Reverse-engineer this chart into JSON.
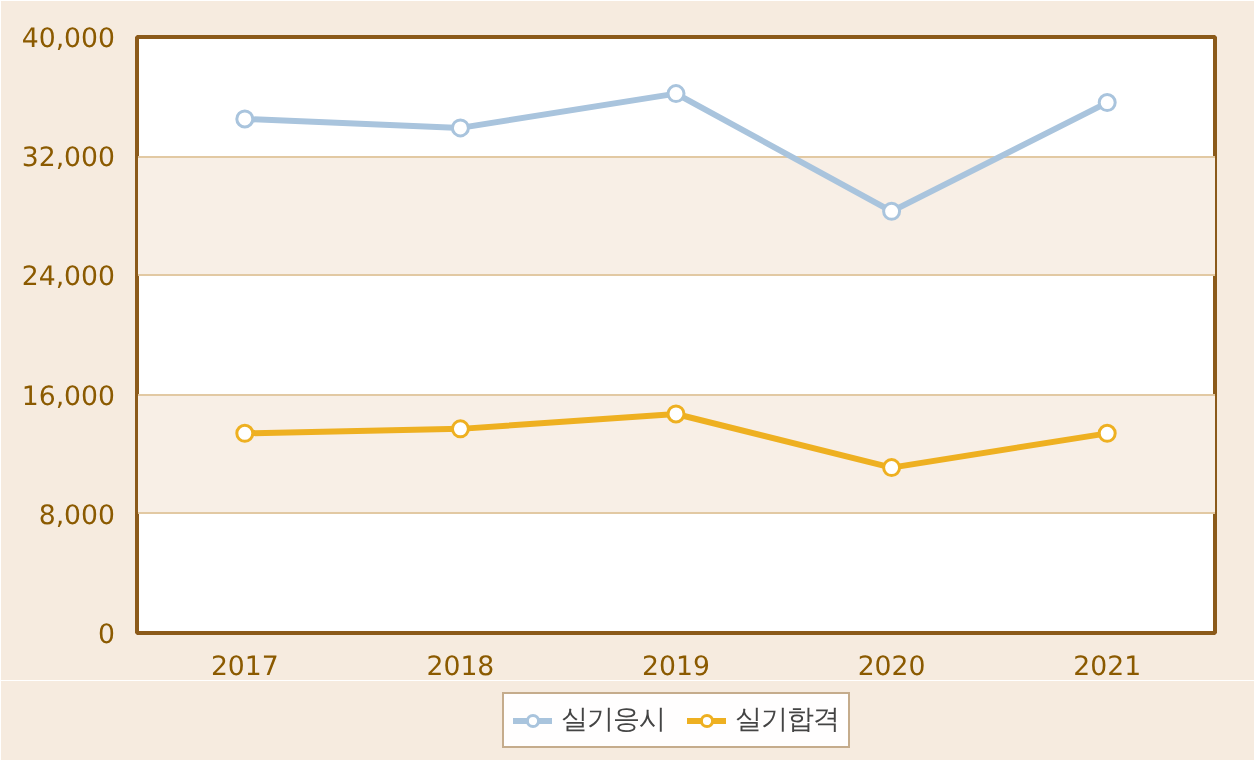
{
  "chart_data": {
    "type": "line",
    "categories": [
      "2017",
      "2018",
      "2019",
      "2020",
      "2021"
    ],
    "series": [
      {
        "name": "실기응시",
        "color": "#a9c4dd",
        "values": [
          34500,
          33900,
          36200,
          28300,
          35600
        ]
      },
      {
        "name": "실기합격",
        "color": "#eeb021",
        "values": [
          13400,
          13700,
          14700,
          11100,
          13400
        ]
      }
    ],
    "ylim": [
      0,
      40000
    ],
    "yticks": [
      {
        "value": 0,
        "label": "0"
      },
      {
        "value": 8000,
        "label": "8,000"
      },
      {
        "value": 16000,
        "label": "16,000"
      },
      {
        "value": 24000,
        "label": "24,000"
      },
      {
        "value": 32000,
        "label": "32,000"
      },
      {
        "value": 40000,
        "label": "40,000"
      }
    ],
    "grid": "y",
    "legend": "bottom",
    "marker": "circle",
    "line_style": "solid"
  }
}
